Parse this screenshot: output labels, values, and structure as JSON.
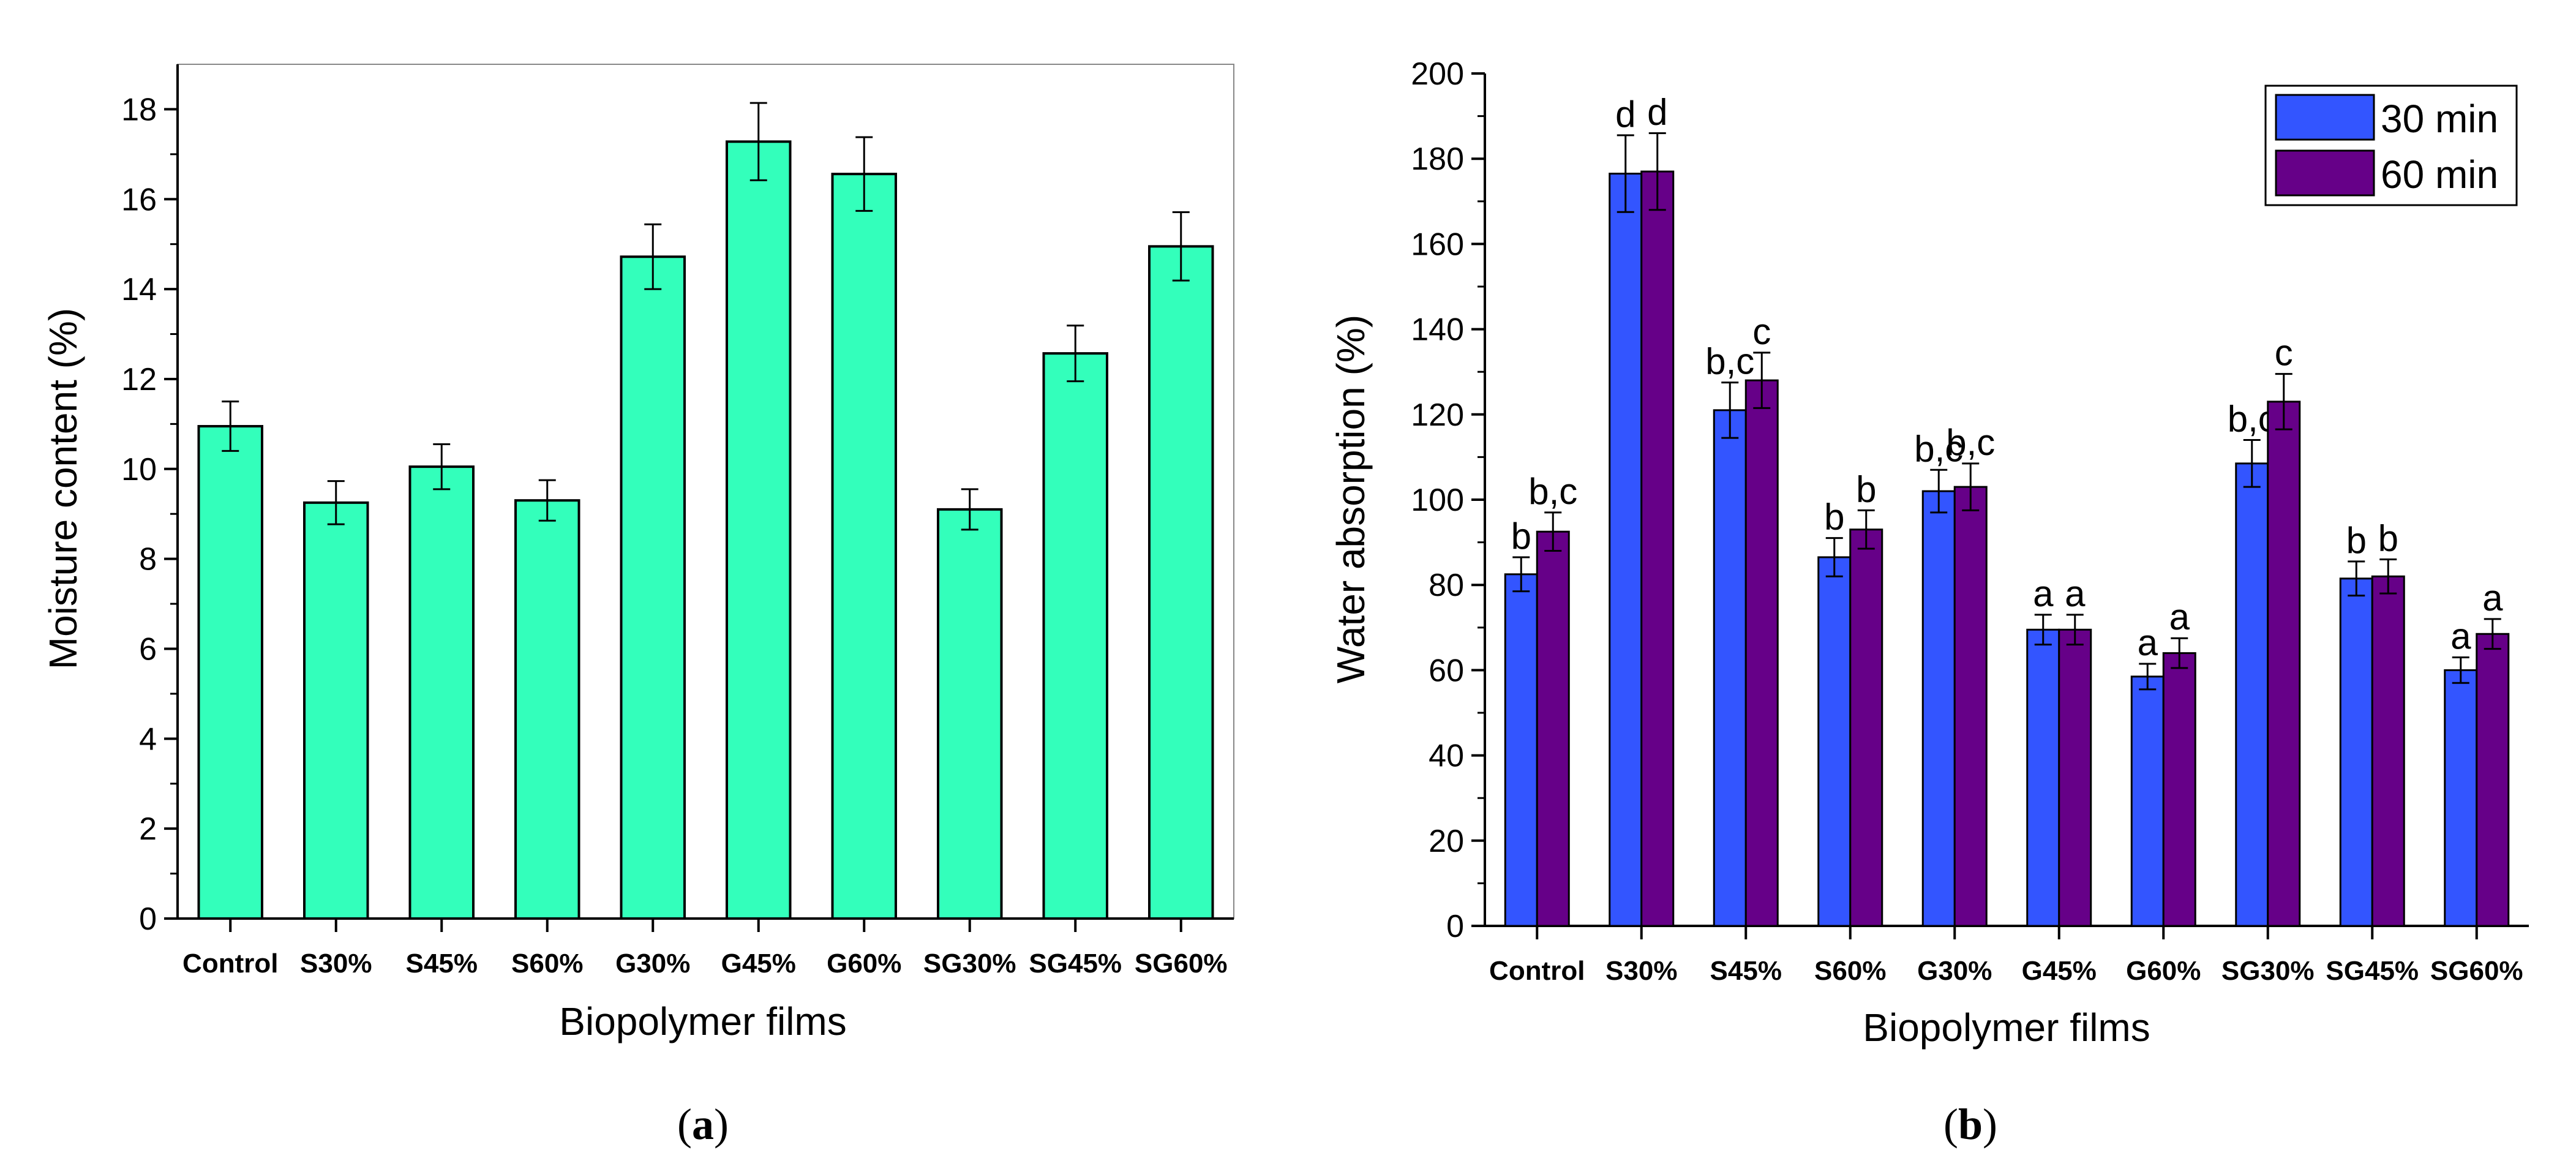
{
  "chart_data": [
    {
      "type": "bar",
      "panel_label": "a",
      "categories": [
        "Control",
        "S30%",
        "S45%",
        "S60%",
        "G30%",
        "G45%",
        "G60%",
        "SG30%",
        "SG45%",
        "SG60%"
      ],
      "values": [
        10.95,
        9.25,
        10.05,
        9.3,
        14.72,
        17.28,
        16.56,
        9.1,
        12.57,
        14.95
      ],
      "errors": [
        0.55,
        0.48,
        0.5,
        0.45,
        0.72,
        0.86,
        0.82,
        0.45,
        0.62,
        0.76
      ],
      "xlabel": "Biopolymer films",
      "ylabel": "Moisture content (%)",
      "ylim": [
        0,
        19
      ],
      "yticks": [
        0,
        2,
        4,
        6,
        8,
        10,
        12,
        14,
        16,
        18
      ],
      "color": "#33ffbb"
    },
    {
      "type": "bar",
      "panel_label": "b",
      "categories": [
        "Control",
        "S30%",
        "S45%",
        "S60%",
        "G30%",
        "G45%",
        "G60%",
        "SG30%",
        "SG45%",
        "SG60%"
      ],
      "series": [
        {
          "name": "30 min",
          "color": "#3355ff",
          "values": [
            82.5,
            176.5,
            121.0,
            86.5,
            102.0,
            69.5,
            58.5,
            108.5,
            81.5,
            60.0
          ],
          "errors": [
            4.0,
            9.0,
            6.5,
            4.5,
            5.0,
            3.5,
            3.0,
            5.5,
            4.0,
            3.0
          ],
          "labels": [
            "b",
            "d",
            "b,c",
            "b",
            "b,c",
            "a",
            "a",
            "b,c",
            "b",
            "a"
          ]
        },
        {
          "name": "60 min",
          "color": "#660088",
          "values": [
            92.5,
            177.0,
            128.0,
            93.0,
            103.0,
            69.5,
            64.0,
            123.0,
            82.0,
            68.5
          ],
          "errors": [
            4.5,
            9.0,
            6.5,
            4.5,
            5.5,
            3.5,
            3.5,
            6.5,
            4.0,
            3.5
          ],
          "labels": [
            "b,c",
            "d",
            "c",
            "b",
            "b,c",
            "a",
            "a",
            "c",
            "b",
            "a"
          ]
        }
      ],
      "xlabel": "Biopolymer films",
      "ylabel": "Water absorption (%)",
      "ylim": [
        0,
        200
      ],
      "yticks": [
        0,
        20,
        40,
        60,
        80,
        100,
        120,
        140,
        160,
        180,
        200
      ],
      "legend_position": "top-right"
    }
  ]
}
